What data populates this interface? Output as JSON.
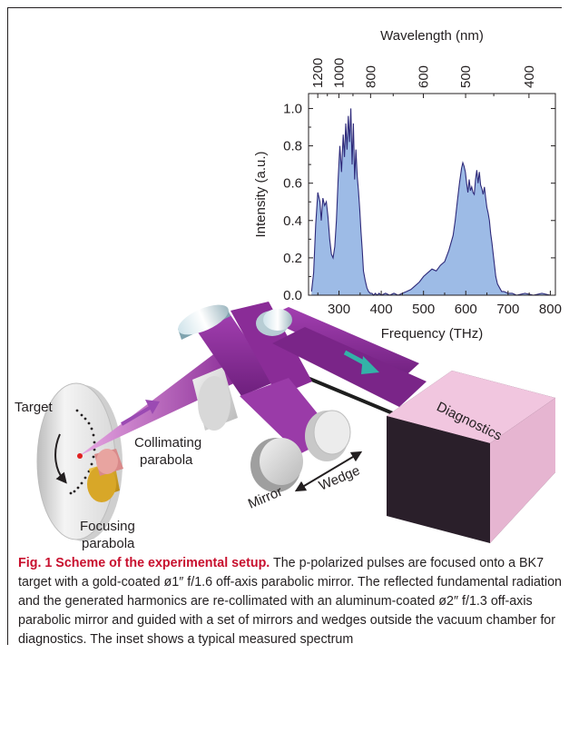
{
  "figure": {
    "labels": {
      "target": "Target",
      "collimating_line1": "Collimating",
      "collimating_line2": "parabola",
      "focusing_line1": "Focusing",
      "focusing_line2": "parabola",
      "mirror": "Mirror",
      "wedge": "Wedge",
      "diagnostics": "Diagnostics"
    },
    "colors": {
      "beam": "#8a2c97",
      "spectrum_fill": "#9dbbe6",
      "spectrum_line": "#2e2a7a",
      "diagnostics_front": "#f1c6df",
      "diagnostics_side": "#3a2a3a",
      "arrow_teal": "#33b2a8"
    }
  },
  "chart_data": {
    "type": "area",
    "title": "",
    "xlabel": "Frequency (THz)",
    "ylabel": "Intensity (a.u.)",
    "x2label": "Wavelength (nm)",
    "xlim": [
      228,
      812
    ],
    "ylim": [
      0,
      1.08
    ],
    "xticks": [
      300,
      400,
      500,
      600,
      700,
      800
    ],
    "yticks": [
      0.0,
      0.2,
      0.4,
      0.6,
      0.8,
      1.0
    ],
    "x2ticks": [
      1200,
      1000,
      800,
      600,
      500,
      400
    ],
    "grid": false,
    "series": [
      {
        "x": [
          235,
          240,
          245,
          250,
          255,
          258,
          262,
          266,
          270,
          274,
          278,
          282,
          286,
          290,
          294,
          298,
          302,
          306,
          310,
          313,
          316,
          319,
          322,
          325,
          328,
          331,
          334,
          337,
          340,
          343,
          346,
          349,
          352,
          355,
          358,
          362,
          366,
          370,
          374,
          378,
          382,
          386,
          390,
          395,
          400,
          410,
          420,
          430,
          440,
          450,
          460,
          470,
          480,
          490,
          500,
          510,
          520,
          530,
          540,
          550,
          560,
          570,
          575,
          580,
          585,
          590,
          593,
          596,
          599,
          602,
          605,
          608,
          611,
          614,
          617,
          620,
          623,
          626,
          629,
          632,
          635,
          638,
          641,
          644,
          647,
          650,
          653,
          656,
          659,
          662,
          665,
          668,
          671,
          675,
          680,
          685,
          690,
          700,
          710,
          720,
          740,
          760,
          780,
          800
        ],
        "y": [
          0.02,
          0.12,
          0.38,
          0.55,
          0.5,
          0.4,
          0.52,
          0.48,
          0.5,
          0.42,
          0.3,
          0.22,
          0.2,
          0.26,
          0.4,
          0.62,
          0.8,
          0.66,
          0.86,
          0.74,
          0.92,
          0.78,
          0.96,
          0.82,
          1.0,
          0.7,
          0.92,
          0.62,
          0.78,
          0.64,
          0.56,
          0.46,
          0.34,
          0.24,
          0.13,
          0.08,
          0.04,
          0.02,
          0.01,
          0.01,
          0.0,
          0.01,
          0.0,
          0.01,
          0.0,
          0.01,
          0.0,
          0.01,
          0.0,
          0.01,
          0.02,
          0.03,
          0.05,
          0.07,
          0.1,
          0.12,
          0.14,
          0.13,
          0.16,
          0.18,
          0.24,
          0.32,
          0.4,
          0.5,
          0.6,
          0.68,
          0.71,
          0.69,
          0.66,
          0.6,
          0.55,
          0.62,
          0.56,
          0.58,
          0.55,
          0.54,
          0.62,
          0.67,
          0.6,
          0.66,
          0.59,
          0.57,
          0.54,
          0.58,
          0.52,
          0.47,
          0.44,
          0.4,
          0.33,
          0.28,
          0.22,
          0.16,
          0.1,
          0.06,
          0.04,
          0.02,
          0.02,
          0.01,
          0.01,
          0.0,
          0.01,
          0.0,
          0.01,
          0.0
        ]
      }
    ]
  },
  "caption": {
    "title": "Fig. 1 Scheme of the experimental setup.",
    "text": " The p-polarized pulses are focused onto a BK7 target with a gold-coated ø1″ f/1.6 off-axis parabolic mirror. The reflected fundamental radiation and the generated harmonics are re-collimated with an aluminum-coated ø2″ f/1.3 off-axis parabolic mirror and guided with a set of mirrors and wedges outside the vacuum chamber for diagnostics. The inset shows a typical measured spectrum"
  }
}
